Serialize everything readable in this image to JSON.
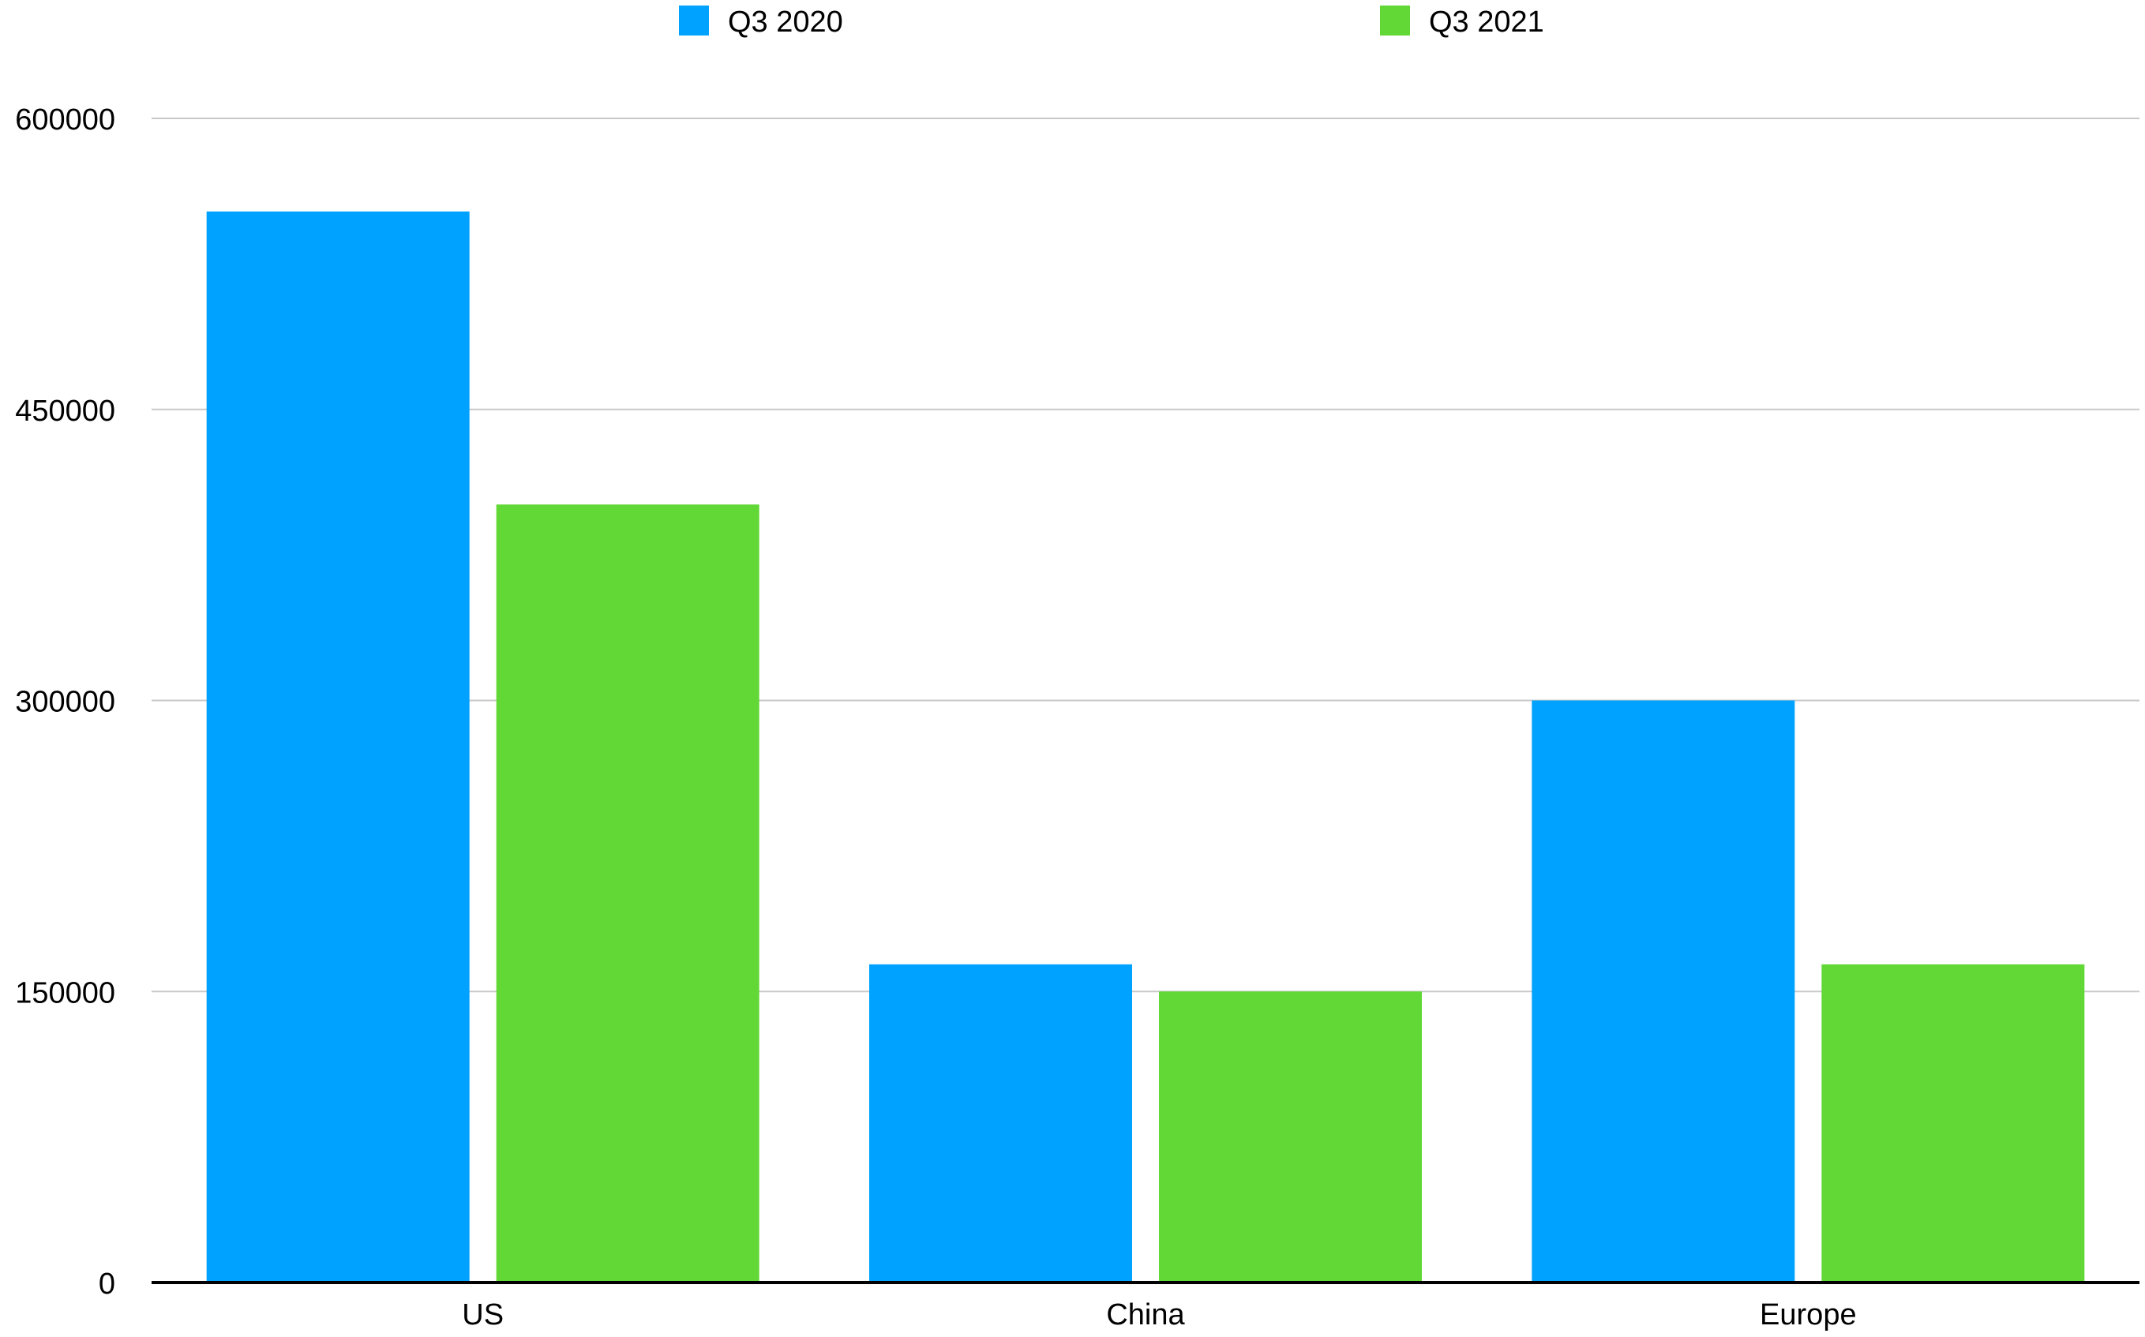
{
  "chart_data": {
    "type": "bar",
    "title": "",
    "xlabel": "",
    "ylabel": "",
    "categories": [
      "US",
      "China",
      "Europe"
    ],
    "series": [
      {
        "name": "Q3 2020",
        "color": "#00a2ff",
        "values": [
          552000,
          164000,
          300000
        ]
      },
      {
        "name": "Q3 2021",
        "color": "#61d836",
        "values": [
          401000,
          150000,
          164000
        ]
      }
    ],
    "ylim": [
      0,
      600000
    ],
    "yticks": [
      "0",
      "150000",
      "300000",
      "450000",
      "600000"
    ],
    "grid": true,
    "legend_position": "top-center"
  }
}
